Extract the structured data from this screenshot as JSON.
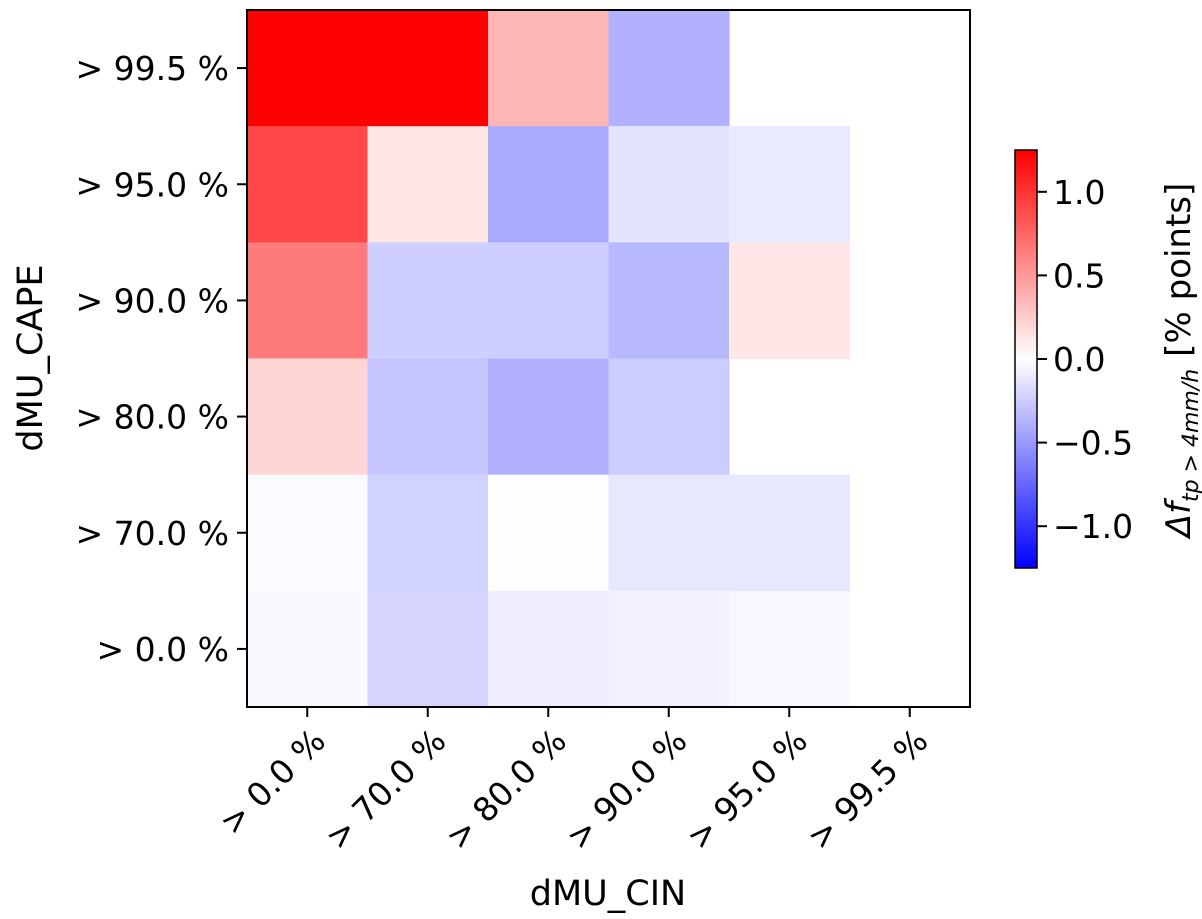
{
  "chart_data": {
    "type": "heatmap",
    "title": "",
    "xlabel": "dMU_CIN",
    "ylabel": "dMU_CAPE",
    "x_categories": [
      "> 0.0 %",
      "> 70.0 %",
      "> 80.0 %",
      "> 90.0 %",
      "> 95.0 %",
      "> 99.5 %"
    ],
    "y_categories": [
      "> 99.5 %",
      "> 95.0 %",
      "> 90.0 %",
      "> 80.0 %",
      "> 70.0 %",
      "> 0.0 %"
    ],
    "values": [
      [
        1.25,
        1.25,
        0.36,
        -0.38,
        null,
        null
      ],
      [
        0.9,
        0.12,
        -0.42,
        -0.13,
        -0.11,
        null
      ],
      [
        0.65,
        -0.24,
        -0.24,
        -0.35,
        0.12,
        null
      ],
      [
        0.2,
        -0.29,
        -0.38,
        -0.25,
        null,
        null
      ],
      [
        -0.02,
        -0.22,
        -0.01,
        -0.12,
        -0.12,
        null
      ],
      [
        -0.03,
        -0.21,
        -0.09,
        -0.07,
        -0.04,
        null
      ]
    ],
    "colormap": "bwr",
    "color_range": [
      -1.25,
      1.25
    ],
    "colorbar": {
      "ticks": [
        "1.0",
        "0.5",
        "0.0",
        "−0.5",
        "−1.0"
      ],
      "tick_values": [
        1.0,
        0.5,
        0.0,
        -0.5,
        -1.0
      ],
      "label_prefix": "Δf",
      "label_subscript": "tp > 4mm/h",
      "label_suffix": "[% points]"
    }
  }
}
